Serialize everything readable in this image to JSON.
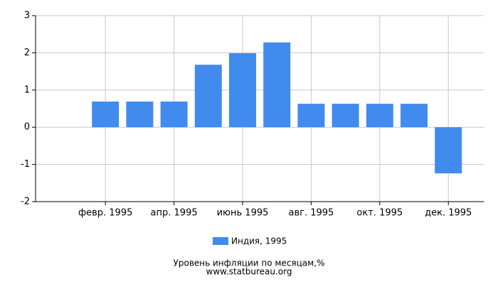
{
  "chart_data": {
    "type": "bar",
    "title": "Уровень инфляции по месяцам,%",
    "subtitle": "www.statbureau.org",
    "categories": [
      null,
      "февр. 1995",
      null,
      "апр. 1995",
      null,
      "июнь 1995",
      null,
      "авг. 1995",
      null,
      "окт. 1995",
      null,
      "дек. 1995"
    ],
    "series": [
      {
        "name": "Индия, 1995",
        "color": "#428bee",
        "values": [
          null,
          0.69,
          0.69,
          0.69,
          1.68,
          1.99,
          2.28,
          0.63,
          0.63,
          0.63,
          0.63,
          -1.24
        ]
      }
    ],
    "ylim": [
      -2,
      3
    ],
    "yticks": [
      -2,
      -1,
      0,
      1,
      2,
      3
    ],
    "grid": true
  }
}
